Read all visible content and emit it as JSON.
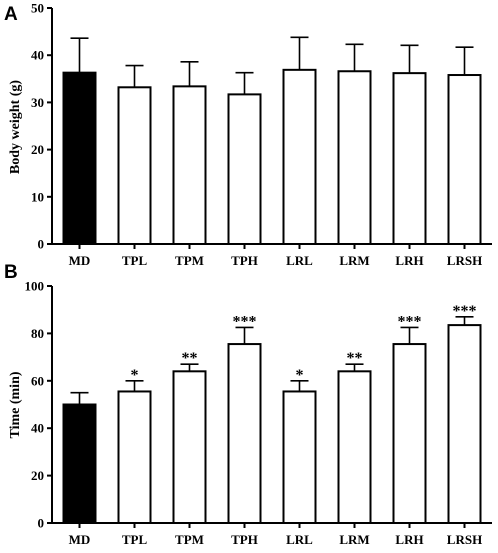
{
  "chart_data": [
    {
      "panel": "A",
      "type": "bar",
      "categories": [
        "MD",
        "TPL",
        "TPM",
        "TPH",
        "LRL",
        "LRM",
        "LRH",
        "LRSH"
      ],
      "values": [
        36.3,
        33.2,
        33.4,
        31.7,
        36.9,
        36.6,
        36.2,
        35.8
      ],
      "errors": [
        7.3,
        4.6,
        5.2,
        4.6,
        6.9,
        5.7,
        5.9,
        5.9
      ],
      "significance": [
        "",
        "",
        "",
        "",
        "",
        "",
        "",
        ""
      ],
      "fills": [
        "#000000",
        "#ffffff",
        "#ffffff",
        "#ffffff",
        "#ffffff",
        "#ffffff",
        "#ffffff",
        "#ffffff"
      ],
      "ylabel": "Body weight (g)",
      "ylim": [
        0,
        50
      ],
      "yticks": [
        0,
        10,
        20,
        30,
        40,
        50
      ]
    },
    {
      "panel": "B",
      "type": "bar",
      "categories": [
        "MD",
        "TPL",
        "TPM",
        "TPH",
        "LRL",
        "LRM",
        "LRH",
        "LRSH"
      ],
      "values": [
        50,
        55.5,
        64,
        75.5,
        55.5,
        64,
        75.5,
        83.5
      ],
      "errors": [
        5,
        4.5,
        3,
        7,
        4.5,
        3,
        7,
        3.5
      ],
      "significance": [
        "",
        "*",
        "**",
        "***",
        "*",
        "**",
        "***",
        "***"
      ],
      "fills": [
        "#000000",
        "#ffffff",
        "#ffffff",
        "#ffffff",
        "#ffffff",
        "#ffffff",
        "#ffffff",
        "#ffffff"
      ],
      "ylabel": "Time (min)",
      "ylim": [
        0,
        100
      ],
      "yticks": [
        0,
        20,
        40,
        60,
        80,
        100
      ]
    }
  ]
}
